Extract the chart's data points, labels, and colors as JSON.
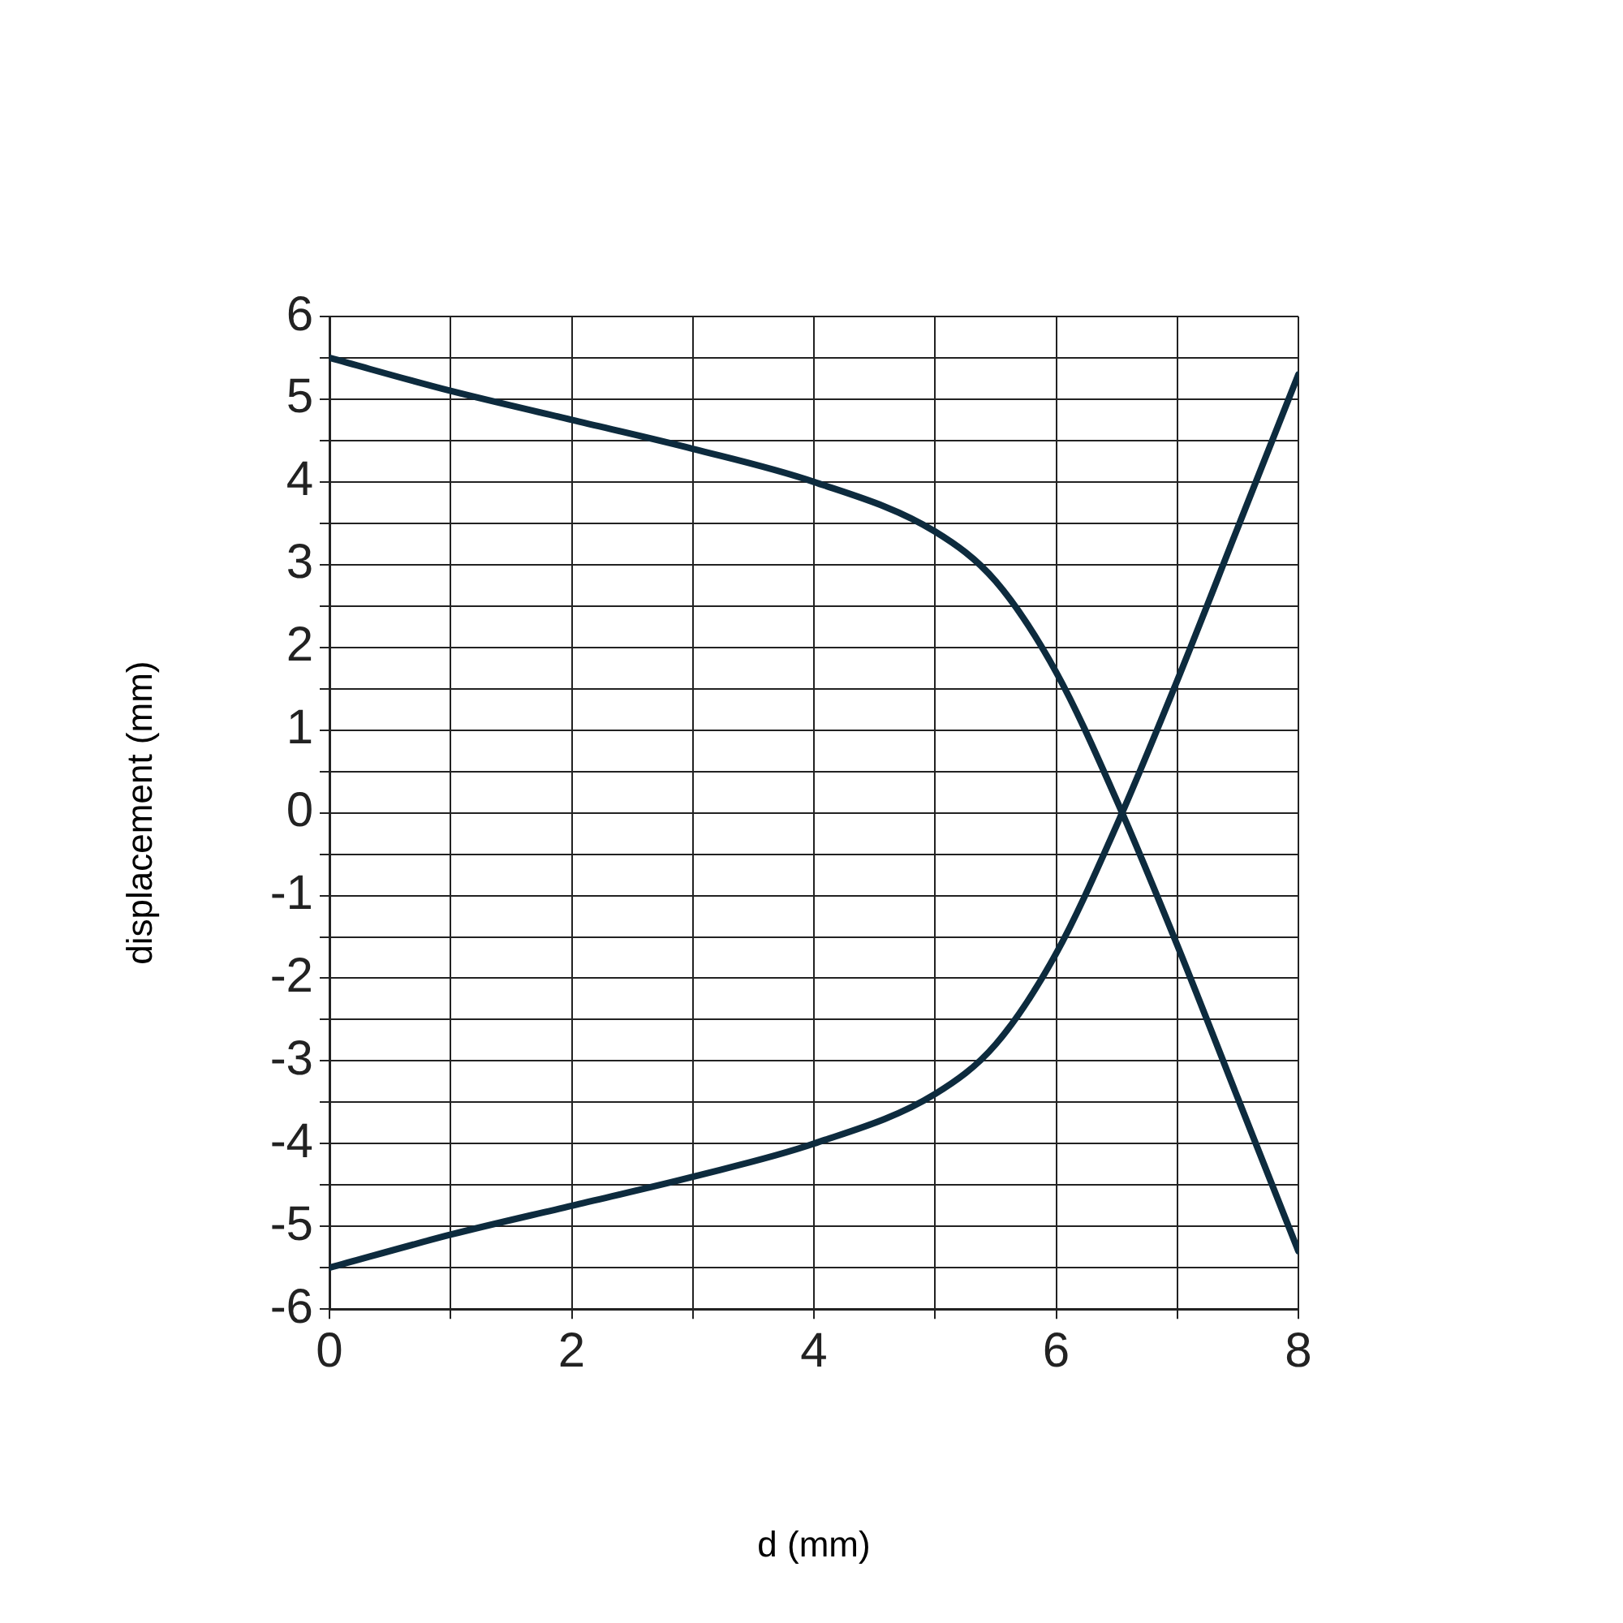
{
  "chart_data": {
    "type": "line",
    "xlabel": "d (mm)",
    "ylabel": "displacement (mm)",
    "x": [
      0,
      1,
      2,
      3,
      4,
      5,
      5.5,
      6,
      6.5,
      7,
      7.5,
      8
    ],
    "series": [
      {
        "color": "#0d2b3e",
        "values": [
          5.5,
          5.1,
          4.75,
          4.4,
          4.0,
          3.4,
          2.8,
          1.7,
          0.15,
          -1.6,
          -3.45,
          -5.3
        ]
      },
      {
        "color": "#0d2b3e",
        "values": [
          -5.5,
          -5.1,
          -4.75,
          -4.4,
          -4.0,
          -3.4,
          -2.8,
          -1.7,
          -0.15,
          1.6,
          3.45,
          5.3
        ]
      }
    ],
    "xlim": [
      0,
      8
    ],
    "xticks": [
      0,
      {
        "value": 1,
        "label": null
      },
      2,
      {
        "value": 3,
        "label": null
      },
      4,
      {
        "value": 5,
        "label": null
      },
      6,
      {
        "value": 7,
        "label": null
      },
      8
    ],
    "ylim": [
      -6,
      6
    ],
    "yticks": [
      -6,
      {
        "value": -5.5,
        "label": null
      },
      -5,
      {
        "value": -4.5,
        "label": null
      },
      -4,
      {
        "value": -3.5,
        "label": null
      },
      -3,
      {
        "value": -2.5,
        "label": null
      },
      -2,
      {
        "value": -1.5,
        "label": null
      },
      -1,
      {
        "value": -0.5,
        "label": null
      },
      0,
      {
        "value": 0.5,
        "label": null
      },
      1,
      {
        "value": 1.5,
        "label": null
      },
      2,
      {
        "value": 2.5,
        "label": null
      },
      3,
      {
        "value": 3.5,
        "label": null
      },
      4,
      {
        "value": 4.5,
        "label": null
      },
      5,
      {
        "value": 5.5,
        "label": null
      },
      6
    ],
    "grid": true,
    "legend": false,
    "marker": "none",
    "line_style": "solid"
  }
}
